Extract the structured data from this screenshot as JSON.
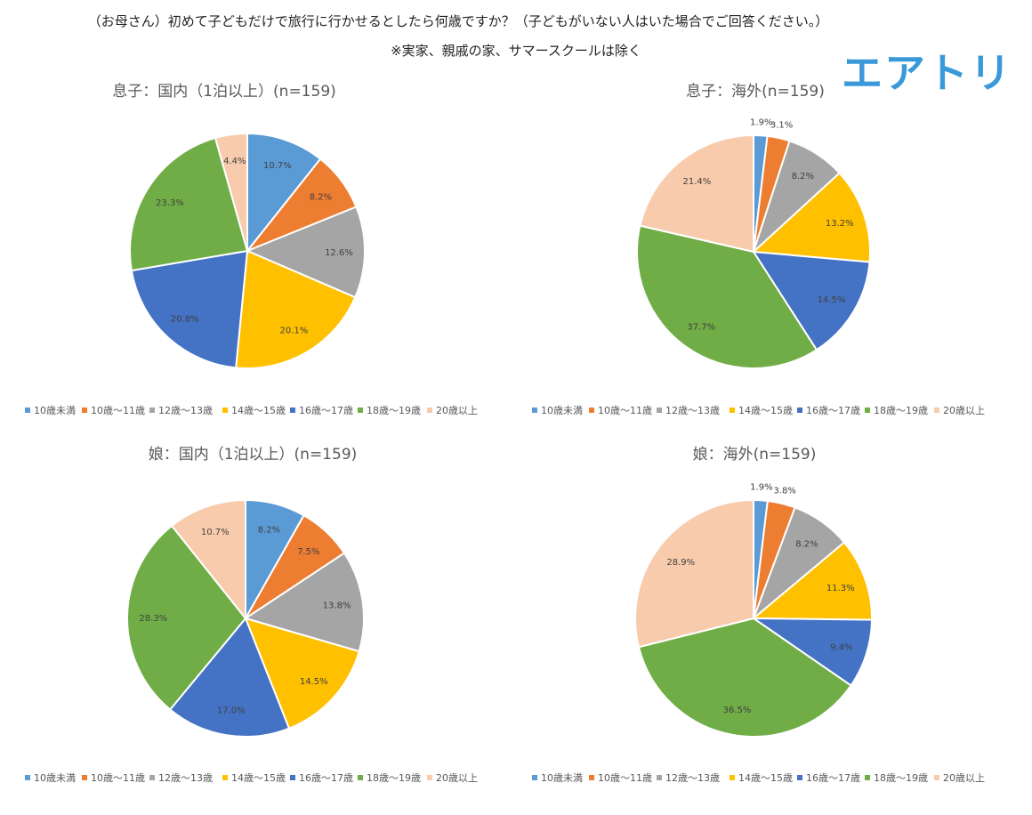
{
  "header": {
    "title": "（お母さん）初めて子どもだけで旅行に行かせるとしたら何歳ですか？（子どもがいない人はいた場合でご回答ください。）",
    "note": "※実家、親戚の家、サマースクールは除く",
    "logo": "エアトリ"
  },
  "colors": [
    "#5b9bd5",
    "#ed7d31",
    "#a5a5a5",
    "#ffc000",
    "#4472c4",
    "#70ad47",
    "#f8cbad"
  ],
  "chart_data": [
    {
      "type": "pie",
      "title": "息子：国内（1泊以上）(n=159)",
      "categories": [
        "10歳未満",
        "10歳～11歳",
        "12歳～13歳",
        "14歳～15歳",
        "16歳～17歳",
        "18歳～19歳",
        "20歳以上"
      ],
      "values": [
        10.7,
        8.2,
        12.6,
        20.1,
        20.8,
        23.3,
        4.4
      ],
      "value_labels": [
        "10.7%",
        "8.2%",
        "12.6%",
        "20.1%",
        "20.8%",
        "23.3%",
        "4.4%"
      ],
      "legend": "bottom"
    },
    {
      "type": "pie",
      "title": "息子：海外(n=159)",
      "categories": [
        "10歳未満",
        "10歳～11歳",
        "12歳～13歳",
        "14歳～15歳",
        "16歳～17歳",
        "18歳～19歳",
        "20歳以上"
      ],
      "values": [
        1.9,
        3.1,
        8.2,
        13.2,
        14.5,
        37.7,
        21.4
      ],
      "value_labels": [
        "1.9%",
        "3.1%",
        "8.2%",
        "13.2%",
        "14.5%",
        "37.7%",
        "21.4%"
      ],
      "legend": "bottom"
    },
    {
      "type": "pie",
      "title": "娘：国内（1泊以上）(n=159)",
      "categories": [
        "10歳未満",
        "10歳～11歳",
        "12歳～13歳",
        "14歳～15歳",
        "16歳～17歳",
        "18歳～19歳",
        "20歳以上"
      ],
      "values": [
        8.2,
        7.5,
        13.8,
        14.5,
        17.0,
        28.3,
        10.7
      ],
      "value_labels": [
        "8.2%",
        "7.5%",
        "13.8%",
        "14.5%",
        "17.0%",
        "28.3%",
        "10.7%"
      ],
      "legend": "bottom"
    },
    {
      "type": "pie",
      "title": "娘：海外(n=159)",
      "categories": [
        "10歳未満",
        "10歳～11歳",
        "12歳～13歳",
        "14歳～15歳",
        "16歳～17歳",
        "18歳～19歳",
        "20歳以上"
      ],
      "values": [
        1.9,
        3.8,
        8.2,
        11.3,
        9.4,
        36.5,
        28.9
      ],
      "value_labels": [
        "1.9%",
        "3.8%",
        "8.2%",
        "11.3%",
        "9.4%",
        "36.5%",
        "28.9%"
      ],
      "legend": "bottom"
    }
  ]
}
